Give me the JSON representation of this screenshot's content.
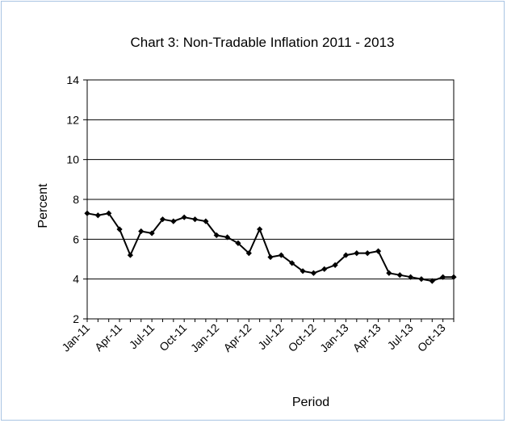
{
  "chart_data": {
    "type": "line",
    "title": "Chart 3: Non-Tradable Inflation  2011 - 2013",
    "xlabel": "Period",
    "ylabel": "Percent",
    "ylim": [
      2,
      14
    ],
    "yticks": [
      2,
      4,
      6,
      8,
      10,
      12,
      14
    ],
    "grid": true,
    "x_tick_labels": [
      "Jan-11",
      "Apr-11",
      "Jul-11",
      "Oct-11",
      "Jan-12",
      "Apr-12",
      "Jul-12",
      "Oct-12",
      "Jan-13",
      "Apr-13",
      "Jul-13",
      "Oct-13"
    ],
    "x": [
      "Jan-11",
      "Feb-11",
      "Mar-11",
      "Apr-11",
      "May-11",
      "Jun-11",
      "Jul-11",
      "Aug-11",
      "Sep-11",
      "Oct-11",
      "Nov-11",
      "Dec-11",
      "Jan-12",
      "Feb-12",
      "Mar-12",
      "Apr-12",
      "May-12",
      "Jun-12",
      "Jul-12",
      "Aug-12",
      "Sep-12",
      "Oct-12",
      "Nov-12",
      "Dec-12",
      "Jan-13",
      "Feb-13",
      "Mar-13",
      "Apr-13",
      "May-13",
      "Jun-13",
      "Jul-13",
      "Aug-13",
      "Sep-13",
      "Oct-13",
      "Nov-13"
    ],
    "series": [
      {
        "values": [
          7.3,
          7.2,
          7.3,
          6.5,
          5.2,
          6.4,
          6.3,
          7.0,
          6.9,
          7.1,
          7.0,
          6.9,
          6.2,
          6.1,
          5.8,
          5.3,
          6.5,
          5.1,
          5.2,
          4.8,
          4.4,
          4.3,
          4.5,
          4.7,
          5.2,
          5.3,
          5.3,
          5.4,
          4.3,
          4.2,
          4.1,
          4.0,
          3.9,
          4.1,
          4.1
        ],
        "color": "#000000"
      }
    ]
  }
}
